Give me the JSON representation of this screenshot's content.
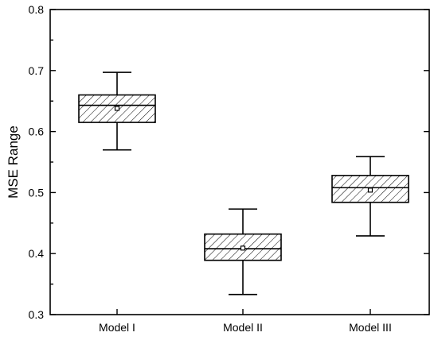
{
  "chart_data": {
    "type": "box",
    "xlabel": "",
    "ylabel": "MSE Range",
    "ylim": [
      0.3,
      0.8
    ],
    "yticks": [
      0.3,
      0.4,
      0.5,
      0.6,
      0.7,
      0.8
    ],
    "yticklabels": [
      "0.3",
      "0.4",
      "0.5",
      "0.6",
      "0.7",
      "0.8"
    ],
    "categories": [
      "Model I",
      "Model II",
      "Model III"
    ],
    "boxes": [
      {
        "category": "Model I",
        "whisker_low": 0.57,
        "q1": 0.615,
        "median": 0.643,
        "q3": 0.66,
        "whisker_high": 0.697,
        "mean": 0.638
      },
      {
        "category": "Model II",
        "whisker_low": 0.333,
        "q1": 0.389,
        "median": 0.408,
        "q3": 0.432,
        "whisker_high": 0.473,
        "mean": 0.409
      },
      {
        "category": "Model III",
        "whisker_low": 0.429,
        "q1": 0.484,
        "median": 0.508,
        "q3": 0.528,
        "whisker_high": 0.559,
        "mean": 0.504
      }
    ],
    "box_fill": "hatched",
    "colors": {
      "stroke": "#000000",
      "background": "#ffffff"
    },
    "grid": false,
    "legend": "none"
  }
}
